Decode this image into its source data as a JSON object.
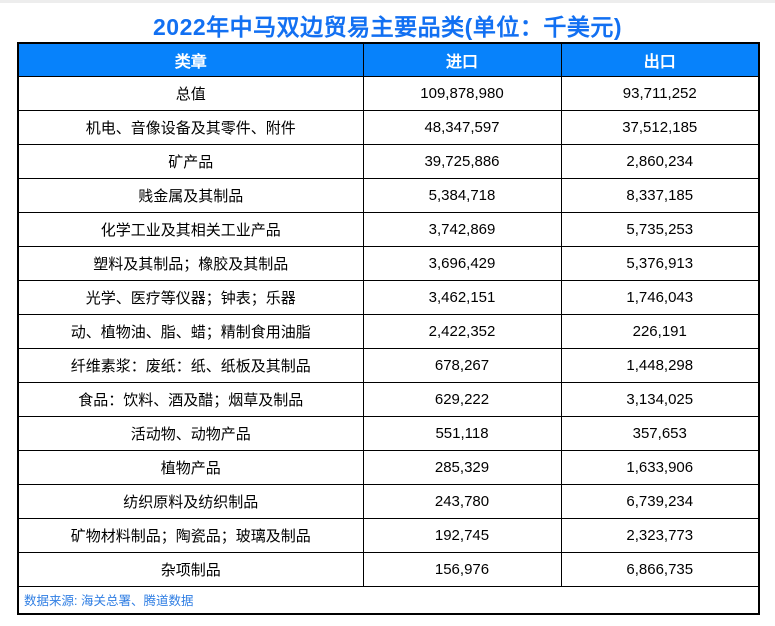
{
  "title": "2022年中马双边贸易主要品类(单位：千美元)",
  "source_note": "数据来源: 海关总署、腾道数据",
  "colors": {
    "header_background": "#0782fb",
    "title_blue": "#1270f2",
    "source_blue": "#2f7ee3",
    "border_black": "#000000"
  },
  "table": {
    "headers": [
      "类章",
      "进口",
      "出口"
    ],
    "rows": [
      {
        "category": "总值",
        "import": "109,878,980",
        "export": "93,711,252"
      },
      {
        "category": "机电、音像设备及其零件、附件",
        "import": "48,347,597",
        "export": "37,512,185"
      },
      {
        "category": "矿产品",
        "import": "39,725,886",
        "export": "2,860,234"
      },
      {
        "category": "贱金属及其制品",
        "import": "5,384,718",
        "export": "8,337,185"
      },
      {
        "category": "化学工业及其相关工业产品",
        "import": "3,742,869",
        "export": "5,735,253"
      },
      {
        "category": "塑料及其制品；橡胶及其制品",
        "import": "3,696,429",
        "export": "5,376,913"
      },
      {
        "category": "光学、医疗等仪器；钟表；乐器",
        "import": "3,462,151",
        "export": "1,746,043"
      },
      {
        "category": "动、植物油、脂、蜡；精制食用油脂",
        "import": "2,422,352",
        "export": "226,191"
      },
      {
        "category": "纤维素浆：废纸：纸、纸板及其制品",
        "import": "678,267",
        "export": "1,448,298"
      },
      {
        "category": "食品：饮料、酒及醋；烟草及制品",
        "import": "629,222",
        "export": "3,134,025"
      },
      {
        "category": "活动物、动物产品",
        "import": "551,118",
        "export": "357,653"
      },
      {
        "category": "植物产品",
        "import": "285,329",
        "export": "1,633,906"
      },
      {
        "category": "纺织原料及纺织制品",
        "import": "243,780",
        "export": "6,739,234"
      },
      {
        "category": "矿物材料制品；陶瓷品；玻璃及制品",
        "import": "192,745",
        "export": "2,323,773"
      },
      {
        "category": "杂项制品",
        "import": "156,976",
        "export": "6,866,735"
      }
    ]
  },
  "chart_data": {
    "type": "table",
    "title": "2022年中马双边贸易主要品类(单位：千美元)",
    "unit": "千美元",
    "columns": [
      "类章",
      "进口",
      "出口"
    ],
    "rows": [
      [
        "总值",
        109878980,
        93711252
      ],
      [
        "机电、音像设备及其零件、附件",
        48347597,
        37512185
      ],
      [
        "矿产品",
        39725886,
        2860234
      ],
      [
        "贱金属及其制品",
        5384718,
        8337185
      ],
      [
        "化学工业及其相关工业产品",
        3742869,
        5735253
      ],
      [
        "塑料及其制品；橡胶及其制品",
        3696429,
        5376913
      ],
      [
        "光学、医疗等仪器；钟表；乐器",
        3462151,
        1746043
      ],
      [
        "动、植物油、脂、蜡；精制食用油脂",
        2422352,
        226191
      ],
      [
        "纤维素浆：废纸：纸、纸板及其制品",
        678267,
        1448298
      ],
      [
        "食品：饮料、酒及醋；烟草及制品",
        629222,
        3134025
      ],
      [
        "活动物、动物产品",
        551118,
        357653
      ],
      [
        "植物产品",
        285329,
        1633906
      ],
      [
        "纺织原料及纺织制品",
        243780,
        6739234
      ],
      [
        "矿物材料制品；陶瓷品；玻璃及制品",
        192745,
        2323773
      ],
      [
        "杂项制品",
        156976,
        6866735
      ]
    ],
    "annotations": [
      "数据来源: 海关总署、腾道数据"
    ]
  }
}
